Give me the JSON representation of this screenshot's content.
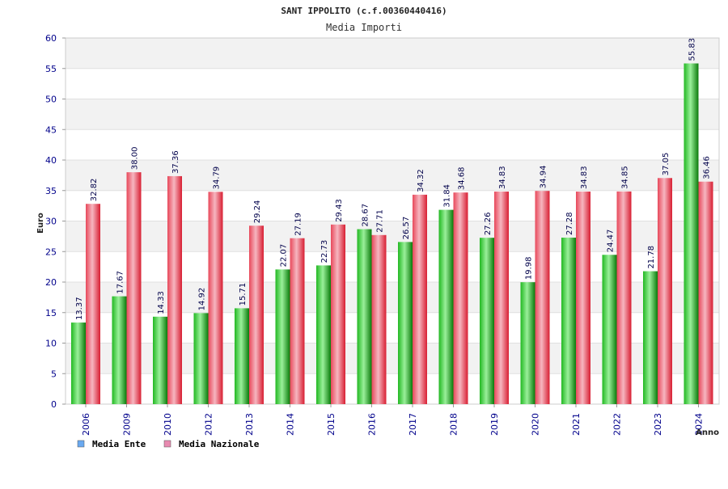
{
  "colors": {
    "ente": "#22b822",
    "ente_light": "#9af09a",
    "ente_dark": "#0a7a0a",
    "nazionale": "#e8485a",
    "nazionale_light": "#f6b6c0",
    "nazionale_dark": "#d81e32",
    "axis_text": "#00008b",
    "band": "#f2f2f2",
    "legend_ente": "#6aa9f0",
    "legend_nazionale": "#e88ab0"
  },
  "chart_data": {
    "type": "bar",
    "title": "SANT IPPOLITO (c.f.00360440416)",
    "subtitle": "Media Importi",
    "xlabel": "Anno",
    "ylabel": "Euro",
    "ylim": [
      0,
      60
    ],
    "yticks": [
      0,
      5,
      10,
      15,
      20,
      25,
      30,
      35,
      40,
      45,
      50,
      55,
      60
    ],
    "grid": true,
    "legend_position": "bottom-left",
    "categories": [
      "2006",
      "2009",
      "2010",
      "2012",
      "2013",
      "2014",
      "2015",
      "2016",
      "2017",
      "2018",
      "2019",
      "2020",
      "2021",
      "2022",
      "2023",
      "2024"
    ],
    "series": [
      {
        "name": "Media Ente",
        "values": [
          13.37,
          17.67,
          14.33,
          14.92,
          15.71,
          22.07,
          22.73,
          28.67,
          26.57,
          31.84,
          27.26,
          19.98,
          27.28,
          24.47,
          21.78,
          55.83
        ],
        "labels": [
          "13.37",
          "17.67",
          "14.33",
          "14.92",
          "15.71",
          "22.07",
          "22.73",
          "28.67",
          "26.57",
          "31.84",
          "27.26",
          "19.98",
          "27.28",
          "24.47",
          "21.78",
          "55.83"
        ]
      },
      {
        "name": "Media Nazionale",
        "values": [
          32.82,
          38.0,
          37.36,
          34.79,
          29.24,
          27.19,
          29.43,
          27.71,
          34.32,
          34.68,
          34.83,
          34.94,
          34.83,
          34.85,
          37.05,
          36.46
        ],
        "labels": [
          "32.82",
          "38.00",
          "37.36",
          "34.79",
          "29.24",
          "27.19",
          "29.43",
          "27.71",
          "34.32",
          "34.68",
          "34.83",
          "34.94",
          "34.83",
          "34.85",
          "37.05",
          "36.46"
        ]
      }
    ]
  }
}
